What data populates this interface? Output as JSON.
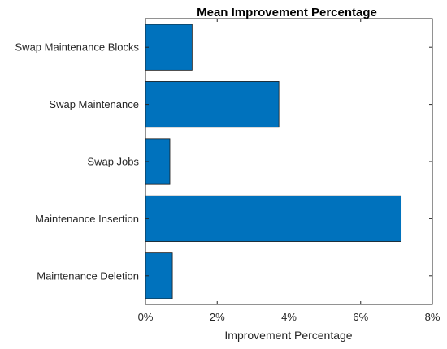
{
  "chart_data": {
    "type": "bar",
    "orientation": "horizontal",
    "title": "Mean Improvement Percentage",
    "xlabel": "Improvement Percentage",
    "ylabel": "",
    "categories": [
      "Swap Maintenance Blocks",
      "Swap Maintenance",
      "Swap Jobs",
      "Maintenance Insertion",
      "Maintenance Deletion"
    ],
    "values": [
      1.3,
      3.72,
      0.68,
      7.13,
      0.75
    ],
    "value_unit": "%",
    "xlim": [
      0,
      8
    ],
    "xticks": [
      0,
      2,
      4,
      6,
      8
    ],
    "xtick_labels": [
      "0%",
      "2%",
      "4%",
      "6%",
      "8%"
    ],
    "grid": false,
    "legend": "none",
    "colors": {
      "bar": "#0072BD",
      "bar_edge": "#1a1a1a",
      "axis": "#262626"
    }
  }
}
